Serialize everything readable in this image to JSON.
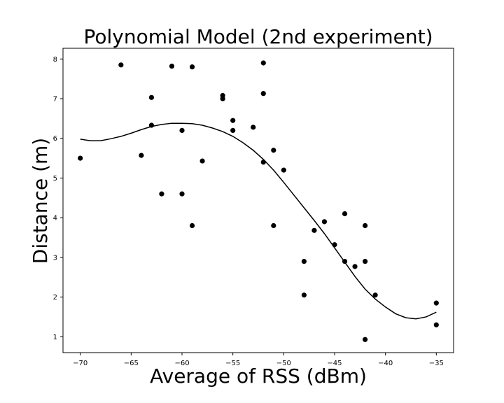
{
  "chart_data": {
    "type": "scatter",
    "title": "Polynomial Model (2nd experiment)",
    "xlabel": "Average of RSS (dBm)",
    "ylabel": "Distance (m)",
    "xlim": [
      -71.7,
      -33.3
    ],
    "ylim": [
      0.6,
      8.27
    ],
    "xticks": [
      -70,
      -65,
      -60,
      -55,
      -50,
      -45,
      -40,
      -35
    ],
    "yticks": [
      1,
      2,
      3,
      4,
      5,
      6,
      7,
      8
    ],
    "grid": false,
    "legend": "none",
    "point_color": "#000000",
    "line_color": "#000000",
    "series": [
      {
        "kind": "scatter",
        "x": [
          -70,
          -66,
          -64,
          -63,
          -63,
          -62,
          -61,
          -60,
          -60,
          -59,
          -59,
          -58,
          -56,
          -56,
          -55,
          -55,
          -53,
          -52,
          -52,
          -52,
          -51,
          -51,
          -50,
          -48,
          -48,
          -47,
          -46,
          -45,
          -44,
          -44,
          -43,
          -42,
          -42,
          -42,
          -41,
          -35,
          -35
        ],
        "y": [
          5.5,
          7.85,
          5.57,
          7.03,
          6.33,
          4.6,
          7.82,
          6.2,
          4.6,
          7.8,
          3.8,
          5.43,
          7.08,
          7.0,
          6.45,
          6.2,
          6.28,
          7.9,
          7.13,
          5.4,
          5.7,
          3.8,
          5.2,
          2.9,
          2.05,
          3.68,
          3.9,
          3.32,
          4.1,
          2.9,
          2.77,
          3.8,
          2.9,
          0.93,
          2.05,
          1.85,
          1.3
        ]
      },
      {
        "kind": "line",
        "x": [
          -70,
          -69,
          -68,
          -67,
          -66,
          -65,
          -64,
          -63,
          -62,
          -61,
          -60,
          -59,
          -58,
          -57,
          -56,
          -55,
          -54,
          -53,
          -52,
          -51,
          -50,
          -49,
          -48,
          -47,
          -46,
          -45,
          -44,
          -43,
          -42,
          -41,
          -40,
          -39,
          -38,
          -37,
          -36,
          -35
        ],
        "y": [
          5.98,
          5.94,
          5.94,
          5.99,
          6.05,
          6.13,
          6.22,
          6.3,
          6.35,
          6.38,
          6.38,
          6.37,
          6.33,
          6.26,
          6.17,
          6.05,
          5.89,
          5.7,
          5.47,
          5.2,
          4.89,
          4.57,
          4.25,
          3.93,
          3.6,
          3.24,
          2.88,
          2.52,
          2.2,
          1.95,
          1.75,
          1.58,
          1.48,
          1.45,
          1.5,
          1.62
        ]
      }
    ]
  }
}
